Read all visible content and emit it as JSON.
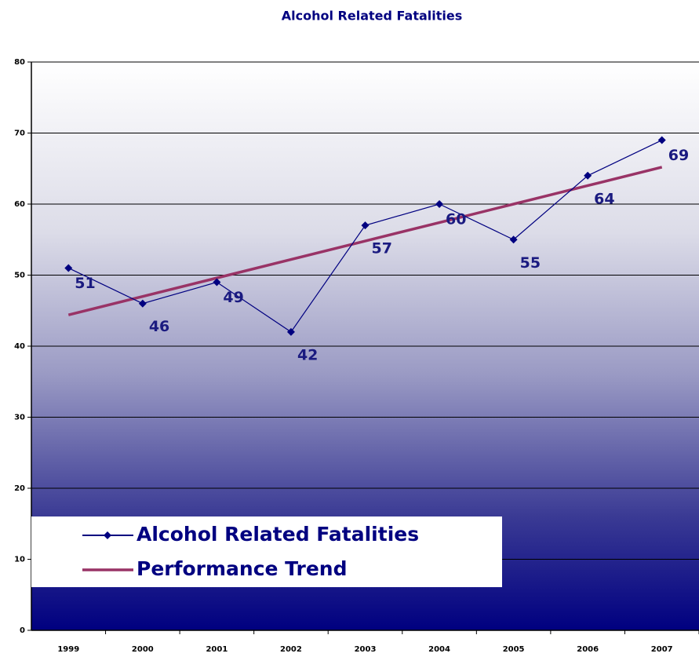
{
  "chart_data": {
    "type": "line",
    "title": "Alcohol Related Fatalities",
    "categories": [
      "1999",
      "2000",
      "2001",
      "2002",
      "2003",
      "2004",
      "2005",
      "2006",
      "2007"
    ],
    "series": [
      {
        "name": "Alcohol Related Fatalities",
        "color": "#000080",
        "values": [
          51,
          46,
          49,
          42,
          57,
          60,
          55,
          64,
          69
        ],
        "markers": true,
        "data_labels": true
      },
      {
        "name": "Performance Trend",
        "color": "#993366",
        "values": [
          44.4,
          47.0,
          49.6,
          52.2,
          54.8,
          57.4,
          60.0,
          62.6,
          65.2
        ],
        "markers": false,
        "data_labels": false
      }
    ],
    "ylim": [
      0,
      80
    ],
    "yticks": [
      0,
      10,
      20,
      30,
      40,
      50,
      60,
      70,
      80
    ],
    "grid": true,
    "legend": "lower left"
  }
}
